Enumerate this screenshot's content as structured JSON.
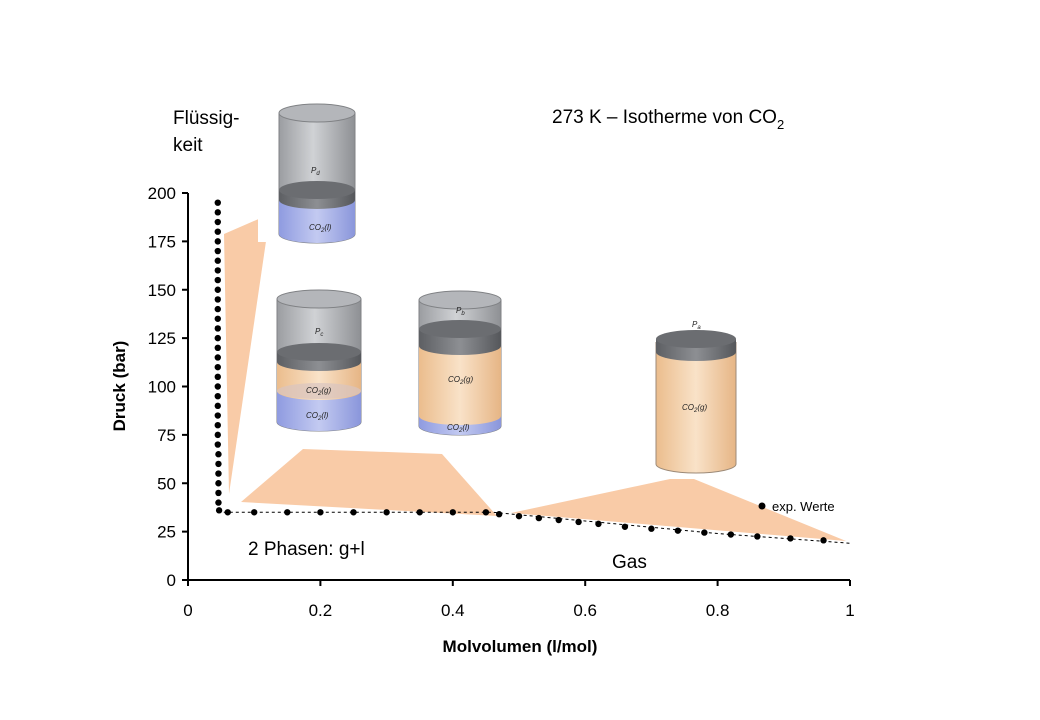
{
  "chart_data": {
    "type": "scatter",
    "title": "273 K – Isotherme von CO",
    "title_subscript": "2",
    "xlabel": "Molvolumen (l/mol)",
    "ylabel": "Druck (bar)",
    "xlim": [
      0,
      1
    ],
    "ylim": [
      0,
      200
    ],
    "x_ticks": [
      0,
      0.2,
      0.4,
      0.6,
      0.8,
      1
    ],
    "x_tick_labels": [
      "0",
      "0.2",
      "0.4",
      "0.6",
      "0.8",
      "1"
    ],
    "y_ticks": [
      0,
      25,
      50,
      75,
      100,
      125,
      150,
      175,
      200
    ],
    "y_tick_labels": [
      "0",
      "25",
      "50",
      "75",
      "100",
      "125",
      "150",
      "175",
      "200"
    ],
    "grid": false,
    "legend": {
      "placement": "bottom-right",
      "entries": [
        "exp. Werte"
      ]
    },
    "series": [
      {
        "name": "exp. Werte",
        "marker": "dot",
        "color": "#000000",
        "line_style": "dotted",
        "points": [
          [
            0.045,
            195
          ],
          [
            0.045,
            190
          ],
          [
            0.045,
            185
          ],
          [
            0.045,
            180
          ],
          [
            0.045,
            175
          ],
          [
            0.045,
            170
          ],
          [
            0.045,
            165
          ],
          [
            0.045,
            160
          ],
          [
            0.045,
            155
          ],
          [
            0.045,
            150
          ],
          [
            0.045,
            145
          ],
          [
            0.045,
            140
          ],
          [
            0.045,
            135
          ],
          [
            0.045,
            130
          ],
          [
            0.045,
            125
          ],
          [
            0.045,
            120
          ],
          [
            0.045,
            115
          ],
          [
            0.045,
            110
          ],
          [
            0.045,
            105
          ],
          [
            0.045,
            100
          ],
          [
            0.045,
            95
          ],
          [
            0.045,
            90
          ],
          [
            0.045,
            85
          ],
          [
            0.045,
            80
          ],
          [
            0.045,
            75
          ],
          [
            0.045,
            70
          ],
          [
            0.046,
            65
          ],
          [
            0.046,
            60
          ],
          [
            0.046,
            55
          ],
          [
            0.046,
            50
          ],
          [
            0.046,
            45
          ],
          [
            0.046,
            40
          ],
          [
            0.047,
            36
          ],
          [
            0.06,
            35
          ],
          [
            0.1,
            35
          ],
          [
            0.15,
            35
          ],
          [
            0.2,
            35
          ],
          [
            0.25,
            35
          ],
          [
            0.3,
            35
          ],
          [
            0.35,
            35
          ],
          [
            0.4,
            35
          ],
          [
            0.45,
            35
          ],
          [
            0.47,
            34
          ],
          [
            0.5,
            33
          ],
          [
            0.53,
            32
          ],
          [
            0.56,
            31
          ],
          [
            0.59,
            30
          ],
          [
            0.62,
            29
          ],
          [
            0.66,
            27.5
          ],
          [
            0.7,
            26.5
          ],
          [
            0.74,
            25.5
          ],
          [
            0.78,
            24.5
          ],
          [
            0.82,
            23.5
          ],
          [
            0.86,
            22.5
          ],
          [
            0.91,
            21.5
          ],
          [
            0.96,
            20.5
          ]
        ],
        "trend_line": [
          [
            0.045,
            35
          ],
          [
            0.46,
            35
          ],
          [
            0.6,
            30.5
          ],
          [
            0.8,
            24
          ],
          [
            1.0,
            19
          ]
        ]
      }
    ],
    "annotations": [
      "Flüssig-",
      "keit",
      "2 Phasen: g+l",
      "Gas"
    ],
    "cylinder_labels": {
      "liquid": {
        "pressure": "P",
        "pressure_sub": "d",
        "phase": "CO",
        "phase_sub": "2",
        "phase_state": "(l)"
      },
      "two_phase_left": {
        "pressure": "P",
        "pressure_sub": "c",
        "gas": "CO",
        "gas_sub": "2",
        "gas_state": "(g)",
        "liquid": "CO",
        "liquid_sub": "2",
        "liquid_state": "(l)"
      },
      "two_phase_right": {
        "pressure": "P",
        "pressure_sub": "b",
        "gas": "CO",
        "gas_sub": "2",
        "gas_state": "(g)",
        "liquid": "CO",
        "liquid_sub": "2",
        "liquid_state": "(l)"
      },
      "gas": {
        "pressure": "P",
        "pressure_sub": "a",
        "phase": "CO",
        "phase_sub": "2",
        "phase_state": "(g)"
      }
    },
    "colors": {
      "callout": "#f9cba7",
      "liquid": "#a9b4e8",
      "gas": "#f4d2ad",
      "piston": "#7a7c80",
      "cylinder_wall": "#bcbec2"
    }
  }
}
